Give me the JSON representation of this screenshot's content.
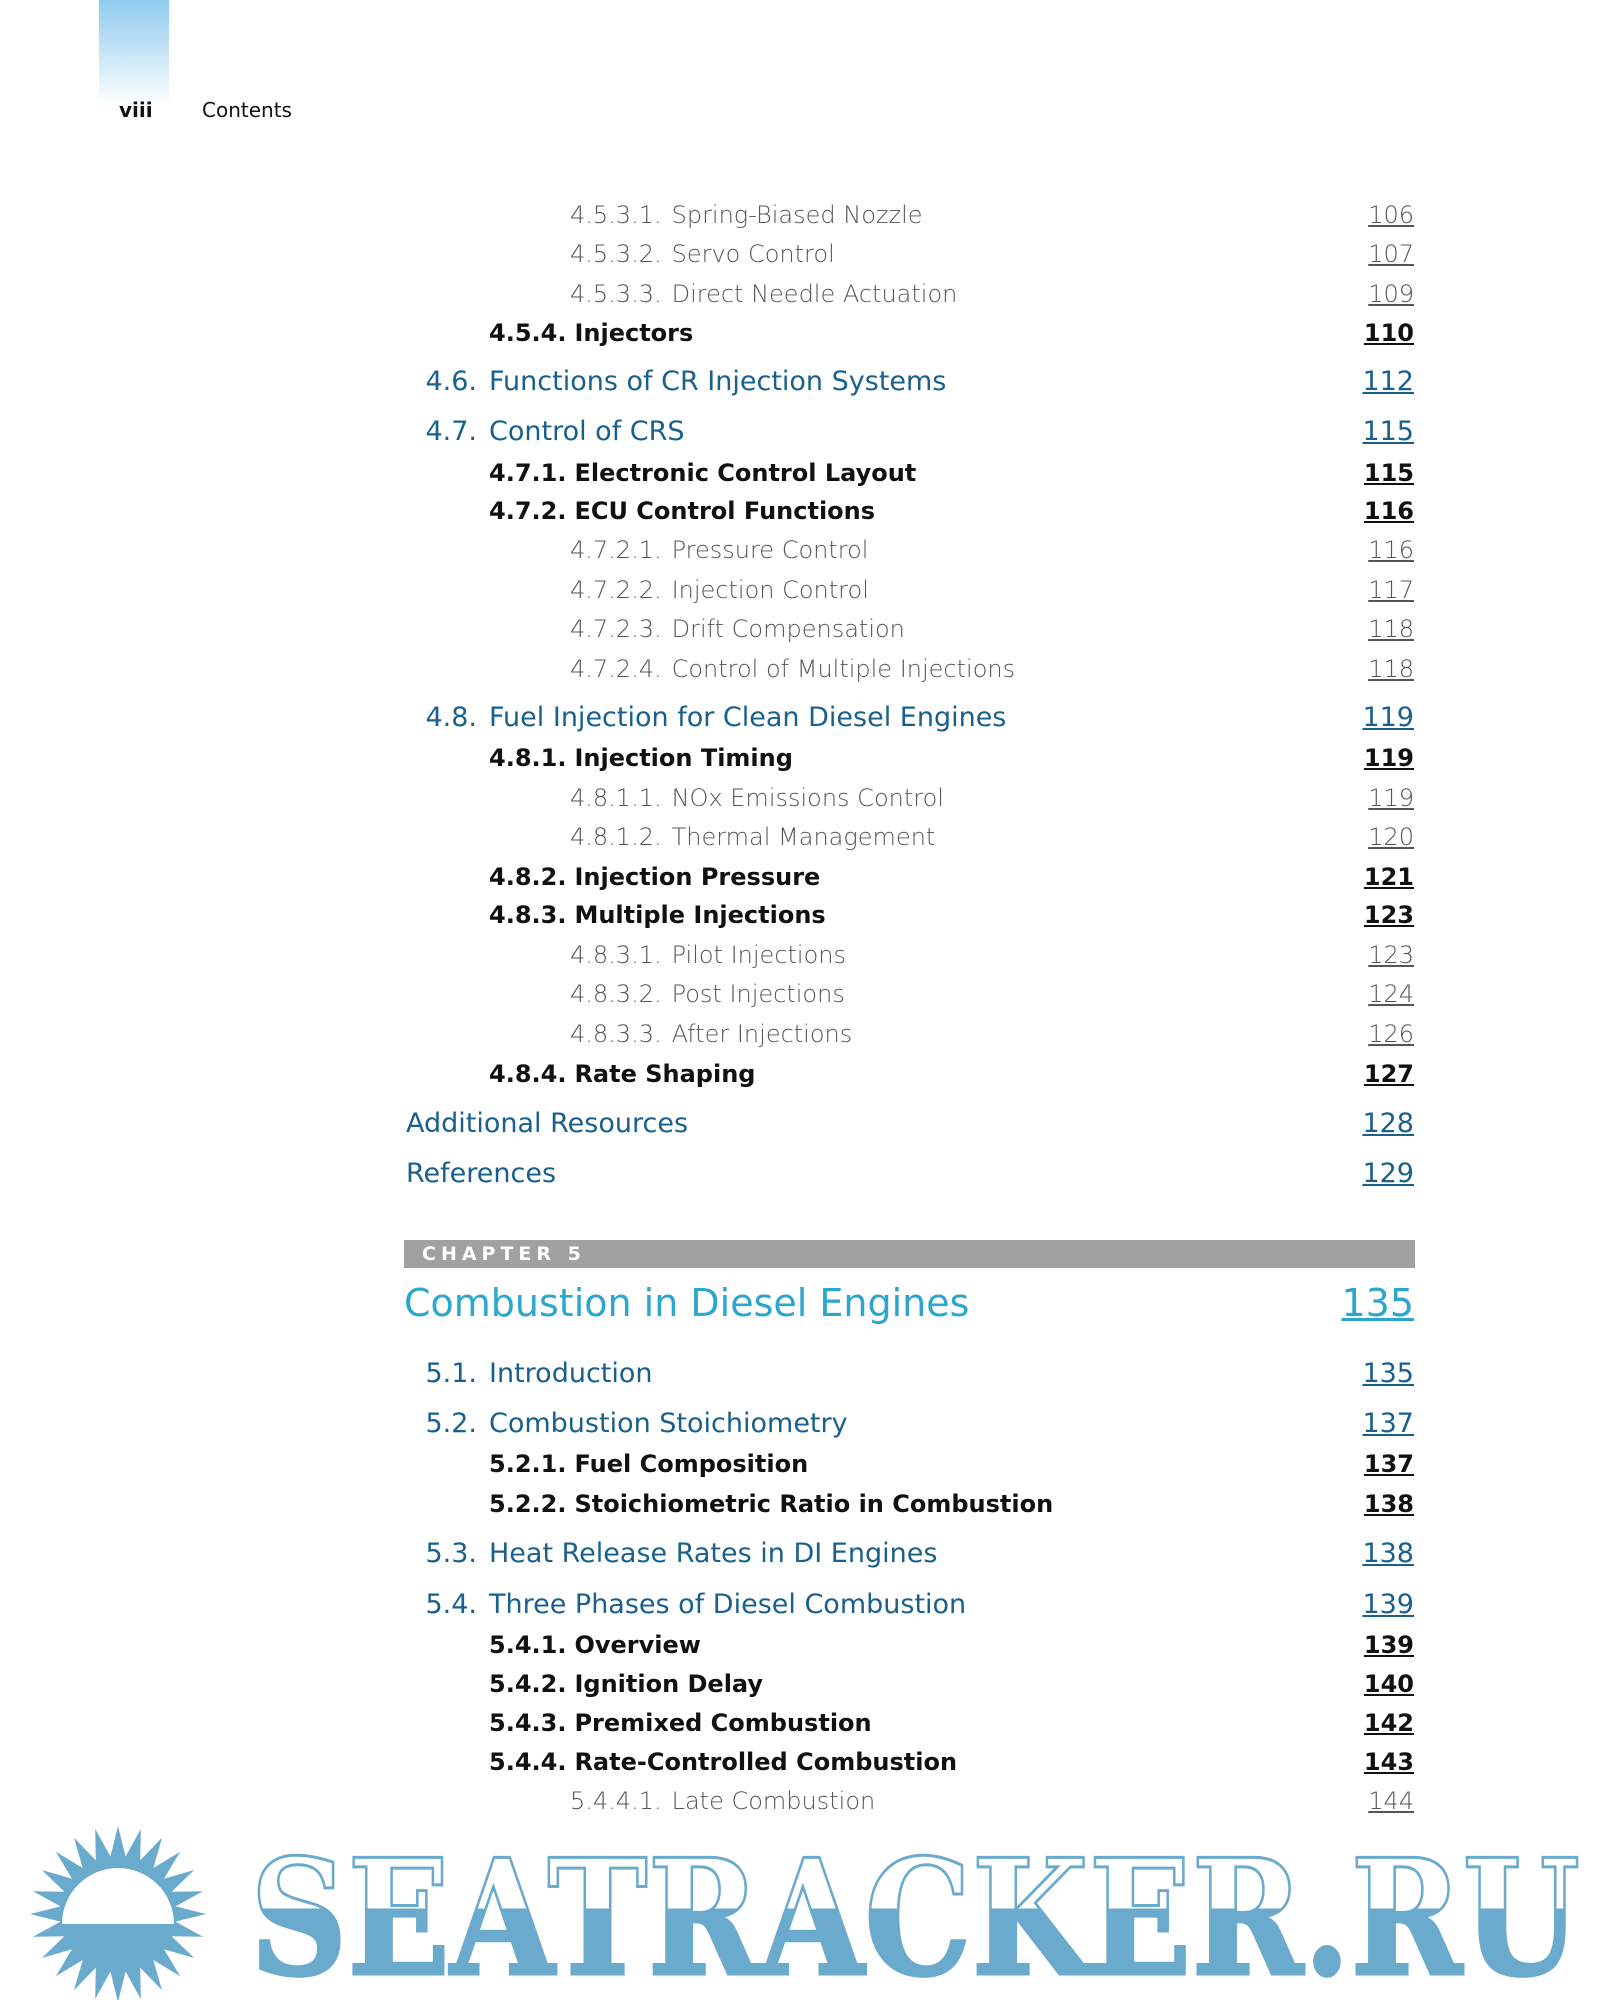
{
  "header": {
    "folio": "viii",
    "running_title": "Contents"
  },
  "entries_top": [
    {
      "level": 3,
      "num": "4.5.3.1.",
      "title": "Spring-Biased Nozzle",
      "page": "106"
    },
    {
      "level": 3,
      "num": "4.5.3.2.",
      "title": "Servo Control",
      "page": "107"
    },
    {
      "level": 3,
      "num": "4.5.3.3.",
      "title": "Direct Needle Actuation",
      "page": "109"
    },
    {
      "level": 2,
      "num": "4.5.4.",
      "title": "Injectors",
      "page": "110"
    },
    {
      "level": 1,
      "num": "4.6.",
      "title": "Functions of CR Injection Systems",
      "page": "112"
    },
    {
      "level": 1,
      "num": "4.7.",
      "title": "Control of CRS",
      "page": "115"
    },
    {
      "level": 2,
      "num": "4.7.1.",
      "title": "Electronic Control Layout",
      "page": "115"
    },
    {
      "level": 2,
      "num": "4.7.2.",
      "title": "ECU Control Functions",
      "page": "116"
    },
    {
      "level": 3,
      "num": "4.7.2.1.",
      "title": "Pressure Control",
      "page": "116"
    },
    {
      "level": 3,
      "num": "4.7.2.2.",
      "title": "Injection Control",
      "page": "117"
    },
    {
      "level": 3,
      "num": "4.7.2.3.",
      "title": "Drift Compensation",
      "page": "118"
    },
    {
      "level": 3,
      "num": "4.7.2.4.",
      "title": "Control of Multiple Injections",
      "page": "118"
    },
    {
      "level": 1,
      "num": "4.8.",
      "title": "Fuel Injection for Clean Diesel Engines",
      "page": "119"
    },
    {
      "level": 2,
      "num": "4.8.1.",
      "title": "Injection Timing",
      "page": "119"
    },
    {
      "level": 3,
      "num": "4.8.1.1.",
      "title": "NOx Emissions Control",
      "page": "119"
    },
    {
      "level": 3,
      "num": "4.8.1.2.",
      "title": "Thermal Management",
      "page": "120"
    },
    {
      "level": 2,
      "num": "4.8.2.",
      "title": "Injection Pressure",
      "page": "121"
    },
    {
      "level": 2,
      "num": "4.8.3.",
      "title": "Multiple Injections",
      "page": "123"
    },
    {
      "level": 3,
      "num": "4.8.3.1.",
      "title": "Pilot Injections",
      "page": "123"
    },
    {
      "level": 3,
      "num": "4.8.3.2.",
      "title": "Post Injections",
      "page": "124"
    },
    {
      "level": 3,
      "num": "4.8.3.3.",
      "title": "After Injections",
      "page": "126"
    },
    {
      "level": 2,
      "num": "4.8.4.",
      "title": "Rate Shaping",
      "page": "127"
    },
    {
      "level": 0,
      "num": "",
      "title": "Additional Resources",
      "page": "128"
    },
    {
      "level": 0,
      "num": "",
      "title": "References",
      "page": "129"
    }
  ],
  "chapter": {
    "label": "CHAPTER 5",
    "title": "Combustion in Diesel Engines",
    "page": "135"
  },
  "entries_chapter": [
    {
      "level": 1,
      "num": "5.1.",
      "title": "Introduction",
      "page": "135"
    },
    {
      "level": 1,
      "num": "5.2.",
      "title": "Combustion Stoichiometry",
      "page": "137"
    },
    {
      "level": 2,
      "num": "5.2.1.",
      "title": "Fuel Composition",
      "page": "137"
    },
    {
      "level": 2,
      "num": "5.2.2.",
      "title": "Stoichiometric Ratio in Combustion",
      "page": "138"
    },
    {
      "level": 1,
      "num": "5.3.",
      "title": "Heat Release Rates in DI Engines",
      "page": "138"
    },
    {
      "level": 1,
      "num": "5.4.",
      "title": "Three Phases of Diesel Combustion",
      "page": "139"
    },
    {
      "level": 2,
      "num": "5.4.1.",
      "title": "Overview",
      "page": "139"
    },
    {
      "level": 2,
      "num": "5.4.2.",
      "title": "Ignition Delay",
      "page": "140"
    },
    {
      "level": 2,
      "num": "5.4.3.",
      "title": "Premixed Combustion",
      "page": "142"
    },
    {
      "level": 2,
      "num": "5.4.4.",
      "title": "Rate-Controlled Combustion",
      "page": "143"
    },
    {
      "level": 3,
      "num": "5.4.4.1.",
      "title": "Late Combustion",
      "page": "144"
    }
  ],
  "watermark": {
    "text": "SEATRACKER.RU",
    "color": "#6aaacd"
  },
  "colors": {
    "section": "#19608c",
    "chapter_title": "#2ba6cf",
    "chapter_bar": "#a0a1a3"
  }
}
